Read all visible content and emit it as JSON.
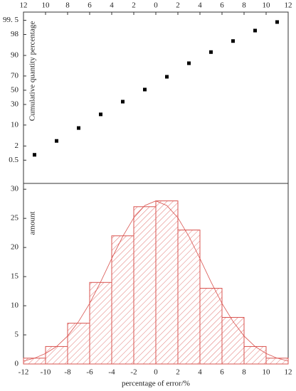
{
  "chart_data": [
    {
      "type": "scatter",
      "ylabel": "Cumulative quantity percentage",
      "x": [
        -11,
        -9,
        -7,
        -5,
        -3,
        -1,
        1,
        3,
        5,
        7,
        9,
        11
      ],
      "values": [
        0.87,
        3.1,
        8.2,
        18.7,
        33.7,
        51,
        69,
        84,
        92,
        96.5,
        98.6,
        99.4
      ],
      "color": "#000000",
      "xlim": [
        -12,
        12
      ],
      "xticks": [
        {
          "value": -12,
          "label": "12"
        },
        {
          "value": -10,
          "label": "10"
        },
        {
          "value": -8,
          "label": "8"
        },
        {
          "value": -6,
          "label": "6"
        },
        {
          "value": -4,
          "label": "4"
        },
        {
          "value": -2,
          "label": "2"
        },
        0,
        2,
        4,
        6,
        8,
        10,
        12
      ],
      "ylim": [
        0.03,
        99.8
      ],
      "yscale": "probability",
      "yticks": [
        0.5,
        2,
        10,
        30,
        50,
        70,
        90,
        98,
        {
          "value": 99.5,
          "label": "99. 5"
        }
      ]
    },
    {
      "type": "histogram",
      "xlabel": "percentage of error/%",
      "ylabel": "amount",
      "bins": [
        -12,
        -10,
        -8,
        -6,
        -4,
        -2,
        0,
        2,
        4,
        6,
        8,
        10,
        12
      ],
      "values": [
        1,
        3,
        7,
        14,
        22,
        27,
        28,
        23,
        13,
        8,
        3,
        1
      ],
      "color": "#d9534f",
      "fit": {
        "x": [
          -12,
          -11,
          -10,
          -9,
          -8,
          -7,
          -6,
          -5,
          -4,
          -3,
          -2,
          -1,
          0,
          1,
          2,
          3,
          4,
          5,
          6,
          7,
          8,
          9,
          10,
          11,
          12
        ],
        "values": [
          0.5,
          1.0,
          1.8,
          3.0,
          4.8,
          7.3,
          10.4,
          14.1,
          18.1,
          21.9,
          25.1,
          27.2,
          28,
          27.2,
          25.1,
          21.9,
          18.1,
          14.1,
          10.4,
          7.3,
          4.8,
          3.0,
          1.8,
          1.0,
          0.5
        ]
      },
      "xlim": [
        -12,
        12
      ],
      "xticks": [
        -12,
        -10,
        -8,
        -6,
        -4,
        -2,
        0,
        2,
        4,
        6,
        8,
        10,
        12
      ],
      "ylim": [
        0,
        31
      ],
      "yticks": [
        0,
        5,
        10,
        15,
        20,
        25,
        30
      ]
    }
  ]
}
